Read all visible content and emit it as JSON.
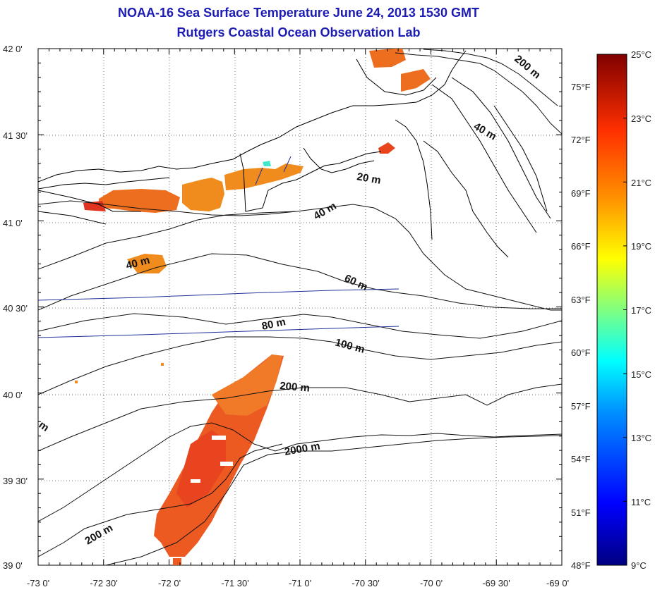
{
  "title": "NOAA-16 Sea Surface Temperature June 24, 2013 1530 GMT",
  "subtitle": "Rutgers Coastal Ocean Observation Lab",
  "map": {
    "lat_labels": [
      "42 0'",
      "41 30'",
      "41 0'",
      "40 30'",
      "40 0'",
      "39 30'",
      "39 0'"
    ],
    "lon_labels": [
      "-73 0'",
      "-72 30'",
      "-72 0'",
      "-71 30'",
      "-71 0'",
      "-70 30'",
      "-70 0'",
      "-69 30'",
      "-69 0'"
    ],
    "lat_range": [
      39.0,
      42.0
    ],
    "lon_range": [
      -73.0,
      -69.0
    ],
    "contour_labels": [
      "200 m",
      "40 m",
      "20 m",
      "40 m",
      "40 m",
      "60 m",
      "80 m",
      "100 m",
      "200 m",
      "2000 m",
      "200 m",
      "m"
    ]
  },
  "colorbar": {
    "celsius_labels": [
      "25°C",
      "23°C",
      "21°C",
      "19°C",
      "17°C",
      "15°C",
      "13°C",
      "11°C",
      "9°C"
    ],
    "celsius_values": [
      25,
      23,
      21,
      19,
      17,
      15,
      13,
      11,
      9
    ],
    "fahrenheit_labels": [
      "75°F",
      "72°F",
      "69°F",
      "66°F",
      "63°F",
      "60°F",
      "57°F",
      "54°F",
      "51°F",
      "48°F"
    ],
    "fahrenheit_values": [
      75,
      72,
      69,
      66,
      63,
      60,
      57,
      54,
      51,
      48
    ],
    "range_c": [
      9,
      25
    ],
    "colors": [
      "#000080",
      "#0000ff",
      "#0080ff",
      "#00ffff",
      "#80ff80",
      "#ffff00",
      "#ff8000",
      "#ff0000",
      "#800000"
    ]
  },
  "colors": {
    "title": "#1c1cb4",
    "sst_warm": "#f26a1c",
    "sst_red": "#e8451e",
    "sst_orange": "#f08c1e",
    "transect": "#1f2f9a"
  }
}
